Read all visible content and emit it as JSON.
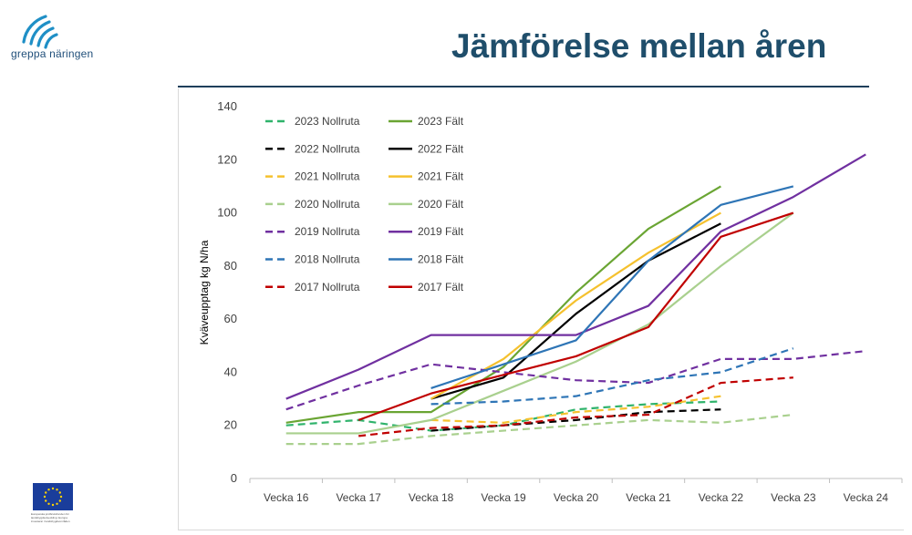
{
  "slide": {
    "title": "Jämförelse mellan åren",
    "logo_text": "greppa näringen",
    "eu_caption": "Europeiska jordbruksfonden för landsbygdsutveckling: Europa investerar i landsbygdsområden"
  },
  "chart_data": {
    "type": "line",
    "categories": [
      "Vecka 16",
      "Vecka 17",
      "Vecka 18",
      "Vecka 19",
      "Vecka 20",
      "Vecka 21",
      "Vecka 22",
      "Vecka 23",
      "Vecka 24"
    ],
    "ylabel": "Kväveupptag kg N/ha",
    "xlabel": "",
    "ylim": [
      0,
      140
    ],
    "yticks": [
      0,
      20,
      40,
      60,
      80,
      100,
      120,
      140
    ],
    "grid": false,
    "legend_position": "top-left",
    "series": [
      {
        "name": "2023 Nollruta",
        "color": "#2fb36b",
        "dashed": true,
        "values": [
          20,
          22,
          18,
          20,
          26,
          28,
          29,
          null,
          null
        ]
      },
      {
        "name": "2023 Fält",
        "color": "#6aa533",
        "dashed": false,
        "values": [
          21,
          25,
          25,
          42,
          70,
          94,
          110,
          null,
          null
        ]
      },
      {
        "name": "2022 Nollruta",
        "color": "#000000",
        "dashed": true,
        "values": [
          null,
          null,
          18,
          20,
          22,
          25,
          26,
          null,
          null
        ]
      },
      {
        "name": "2022 Fält",
        "color": "#000000",
        "dashed": false,
        "values": [
          null,
          null,
          30,
          38,
          62,
          82,
          96,
          null,
          null
        ]
      },
      {
        "name": "2021 Nollruta",
        "color": "#f5c12e",
        "dashed": true,
        "values": [
          null,
          null,
          22,
          21,
          25,
          27,
          31,
          null,
          null
        ]
      },
      {
        "name": "2021 Fält",
        "color": "#f5c12e",
        "dashed": false,
        "values": [
          null,
          null,
          30,
          45,
          67,
          85,
          100,
          null,
          null
        ]
      },
      {
        "name": "2020 Nollruta",
        "color": "#a9d08e",
        "dashed": true,
        "values": [
          13,
          13,
          16,
          18,
          20,
          22,
          21,
          24,
          null
        ]
      },
      {
        "name": "2020 Fält",
        "color": "#a9d08e",
        "dashed": false,
        "values": [
          17,
          17,
          22,
          33,
          44,
          58,
          80,
          100,
          null
        ]
      },
      {
        "name": "2019 Nollruta",
        "color": "#7030a0",
        "dashed": true,
        "values": [
          26,
          35,
          43,
          40,
          37,
          36,
          45,
          45,
          48
        ]
      },
      {
        "name": "2019 Fält",
        "color": "#7030a0",
        "dashed": false,
        "values": [
          30,
          41,
          54,
          54,
          54,
          65,
          93,
          106,
          122
        ]
      },
      {
        "name": "2018 Nollruta",
        "color": "#2e75b6",
        "dashed": true,
        "values": [
          null,
          null,
          28,
          29,
          31,
          37,
          40,
          49,
          null
        ]
      },
      {
        "name": "2018 Fält",
        "color": "#2e75b6",
        "dashed": false,
        "values": [
          null,
          null,
          34,
          43,
          52,
          82,
          103,
          110,
          null
        ]
      },
      {
        "name": "2017 Nollruta",
        "color": "#c00000",
        "dashed": true,
        "values": [
          null,
          16,
          19,
          20,
          23,
          24,
          36,
          38,
          null
        ]
      },
      {
        "name": "2017 Fält",
        "color": "#c00000",
        "dashed": false,
        "values": [
          null,
          22,
          32,
          39,
          46,
          57,
          91,
          100,
          null
        ]
      }
    ]
  }
}
